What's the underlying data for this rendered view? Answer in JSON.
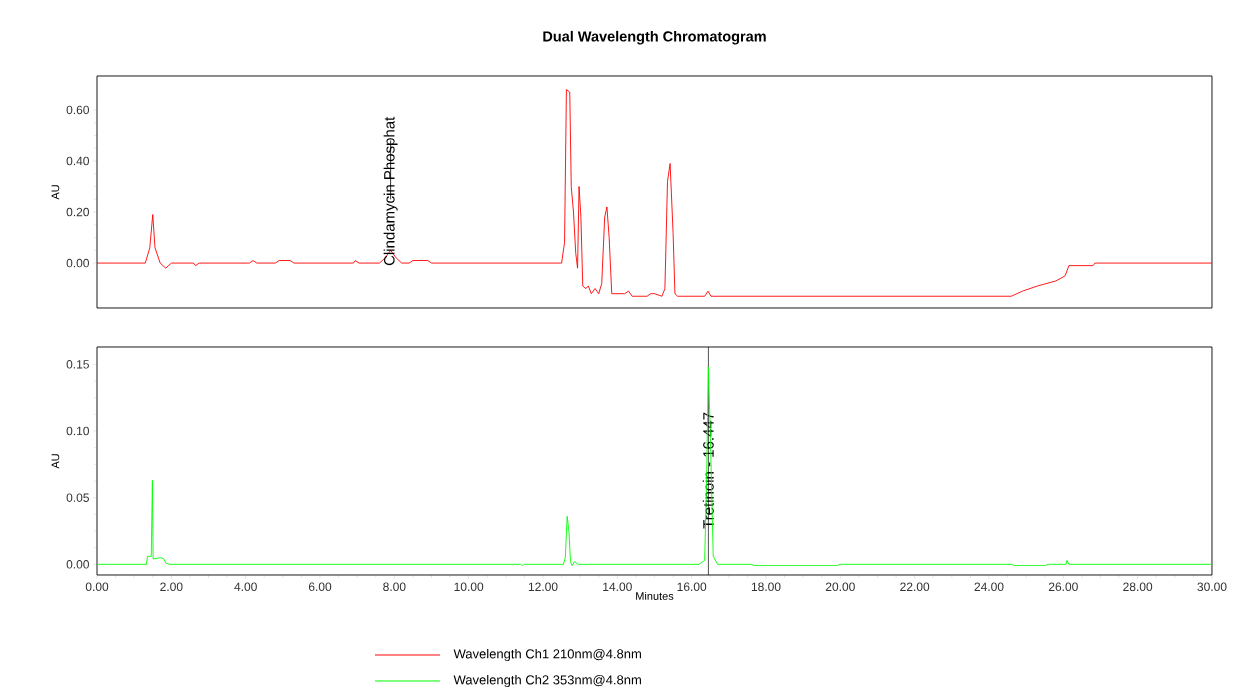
{
  "chart_data": [
    {
      "type": "line",
      "title": "Dual Wavelength Chromatogram",
      "ylabel": "AU",
      "xlim": [
        0,
        30
      ],
      "ylim": [
        -0.176,
        0.733
      ],
      "yticks": [
        {
          "value": 0,
          "label": "0.00"
        },
        {
          "value": 0.2,
          "label": "0.20"
        },
        {
          "value": 0.4,
          "label": "0.40"
        },
        {
          "value": 0.6,
          "label": "0.60"
        }
      ],
      "tick_labels": "y",
      "legend": "bottom",
      "annotations": [
        {
          "text": "Clindamycin Phosphat",
          "x": 7.9,
          "y": 0.05
        }
      ],
      "series": [
        {
          "name": "Wavelength Ch1 210nm@4.8nm",
          "color": "#ff0000",
          "x": [
            0,
            1.3,
            1.42,
            1.5,
            1.56,
            1.7,
            1.85,
            2.0,
            2.6,
            2.65,
            2.75,
            4.1,
            4.2,
            4.3,
            4.8,
            4.9,
            5.2,
            5.3,
            6.9,
            6.95,
            7.05,
            7.6,
            7.75,
            7.9,
            8.05,
            8.2,
            8.4,
            8.5,
            8.9,
            9.0,
            12.5,
            12.58,
            12.63,
            12.72,
            12.76,
            12.82,
            12.88,
            12.93,
            12.97,
            13.02,
            13.07,
            13.15,
            13.22,
            13.3,
            13.4,
            13.5,
            13.58,
            13.66,
            13.72,
            13.78,
            13.85,
            14.2,
            14.3,
            14.4,
            14.8,
            14.9,
            15.0,
            15.2,
            15.28,
            15.35,
            15.42,
            15.5,
            15.55,
            15.62,
            16.35,
            16.44,
            16.52,
            24.6,
            24.9,
            25.3,
            25.8,
            26.05,
            26.15,
            26.8,
            26.85,
            30
          ],
          "values": [
            0,
            0,
            0.06,
            0.19,
            0.06,
            0.0,
            -0.02,
            0.0,
            0.0,
            -0.01,
            0.0,
            0.0,
            0.01,
            0.0,
            0.0,
            0.01,
            0.01,
            0.0,
            0.0,
            0.01,
            0.0,
            0.0,
            0.02,
            0.05,
            0.02,
            0.0,
            0.0,
            0.01,
            0.01,
            0.0,
            0.0,
            0.08,
            0.68,
            0.67,
            0.3,
            0.2,
            0.04,
            -0.02,
            0.3,
            0.18,
            -0.09,
            -0.1,
            -0.09,
            -0.12,
            -0.1,
            -0.12,
            -0.08,
            0.18,
            0.22,
            0.1,
            -0.12,
            -0.12,
            -0.11,
            -0.13,
            -0.13,
            -0.12,
            -0.12,
            -0.13,
            -0.1,
            0.32,
            0.39,
            0.12,
            -0.12,
            -0.13,
            -0.13,
            -0.11,
            -0.13,
            -0.13,
            -0.11,
            -0.09,
            -0.07,
            -0.05,
            -0.01,
            -0.01,
            0.0,
            0.0
          ]
        }
      ]
    },
    {
      "type": "line",
      "xlabel": "Minutes",
      "ylabel": "AU",
      "xlim": [
        0,
        30
      ],
      "ylim": [
        -0.008,
        0.163
      ],
      "xticks": [
        {
          "value": 0,
          "label": "0.00"
        },
        {
          "value": 2,
          "label": "2.00"
        },
        {
          "value": 4,
          "label": "4.00"
        },
        {
          "value": 6,
          "label": "6.00"
        },
        {
          "value": 8,
          "label": "8.00"
        },
        {
          "value": 10,
          "label": "10.00"
        },
        {
          "value": 12,
          "label": "12.00"
        },
        {
          "value": 14,
          "label": "14.00"
        },
        {
          "value": 16,
          "label": "16.00"
        },
        {
          "value": 18,
          "label": "18.00"
        },
        {
          "value": 20,
          "label": "20.00"
        },
        {
          "value": 22,
          "label": "22.00"
        },
        {
          "value": 24,
          "label": "24.00"
        },
        {
          "value": 26,
          "label": "26.00"
        },
        {
          "value": 28,
          "label": "28.00"
        },
        {
          "value": 30,
          "label": "30.00"
        }
      ],
      "yticks": [
        {
          "value": 0,
          "label": "0.00"
        },
        {
          "value": 0.05,
          "label": "0.05"
        },
        {
          "value": 0.1,
          "label": "0.10"
        },
        {
          "value": 0.15,
          "label": "0.15"
        }
      ],
      "legend": "bottom",
      "ref_lines": [
        {
          "axis": "x",
          "value": 16.447,
          "label": "Tretinoin - 16.447",
          "color": "#000000"
        }
      ],
      "series": [
        {
          "name": "Wavelength Ch2 353nm@4.8nm",
          "color": "#00ff00",
          "x": [
            0,
            1.33,
            1.36,
            1.46,
            1.49,
            1.51,
            1.72,
            1.8,
            1.85,
            1.95,
            11.4,
            11.45,
            11.5,
            12.55,
            12.6,
            12.65,
            12.7,
            12.74,
            12.78,
            12.85,
            12.95,
            16.2,
            16.35,
            16.4,
            16.45,
            16.5,
            16.58,
            16.7,
            17.6,
            17.7,
            19.9,
            20.0,
            24.6,
            24.7,
            25.5,
            25.6,
            26.07,
            26.1,
            26.15,
            30
          ],
          "values": [
            0,
            0,
            0.006,
            0.006,
            0.063,
            0.004,
            0.005,
            0.004,
            0.001,
            0.0,
            0.0,
            -0.001,
            0.0,
            0.0,
            0.005,
            0.036,
            0.024,
            0.002,
            -0.001,
            0.002,
            0.0,
            0.0,
            0.003,
            0.06,
            0.148,
            0.1,
            0.006,
            0.0,
            0.0,
            -0.001,
            -0.001,
            0.0,
            0.0,
            -0.001,
            -0.001,
            0.0,
            0.0,
            0.003,
            0.0,
            0.0
          ]
        }
      ]
    }
  ]
}
